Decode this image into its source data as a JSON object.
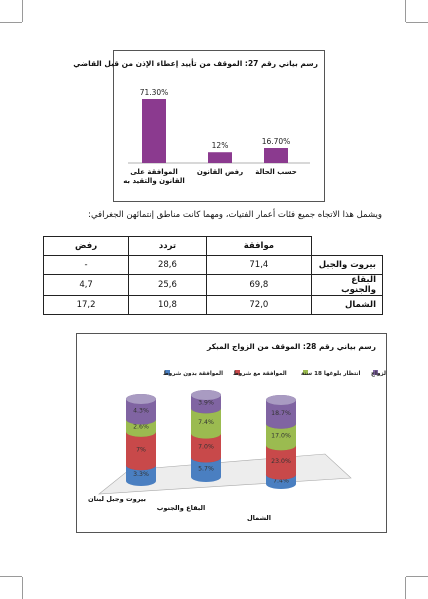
{
  "chart1": {
    "title": "رسم بياني رقم 27: الموقف من تأييد إعطاء الإذن من قبل القاضي",
    "chart_data": {
      "type": "bar",
      "categories": [
        "الموافقة على القانون والتقيد به",
        "رفض القانون",
        "حسب الحالة"
      ],
      "values": [
        71.3,
        12,
        16.7
      ],
      "value_labels": [
        "71.30%",
        "12%",
        "16.70%"
      ],
      "colors": [
        "#8b3a8f"
      ]
    }
  },
  "paragraph": "ويشمل هذا الاتجاه جميع فئات أعمار الفتيات، ومهما كانت مناطق إنتمائهن الجغرافي:",
  "table": {
    "headers": [
      "موافقة",
      "تردد",
      "رفض"
    ],
    "rows": [
      {
        "region": "بيروت والجبل",
        "values": [
          "71,4",
          "28,6",
          "-"
        ]
      },
      {
        "region": "البقاع والجنوب",
        "values": [
          "69,8",
          "25,6",
          "4,7"
        ]
      },
      {
        "region": "الشمال",
        "values": [
          "72,0",
          "10,8",
          "17,2"
        ]
      }
    ]
  },
  "chart2": {
    "title": "رسم بياني رقم 28: الموقف من الزواج المبكر",
    "chart_data": {
      "type": "bar",
      "stacked": true,
      "categories": [
        "بيروت وجبل لبنان",
        "البقاع والجنوب",
        "الشمال"
      ],
      "legend_position": "top",
      "series": [
        {
          "name": "الموافقة بدون شروط",
          "color": "#4a7fc1",
          "values": [
            3.3,
            5.7,
            7.4
          ],
          "labels": [
            "3.3%",
            "5.7%",
            "7.4%"
          ]
        },
        {
          "name": "الموافقة مع شروط",
          "color": "#c8494a",
          "values": [
            7,
            7,
            23
          ],
          "labels": [
            "7%",
            "7.0%",
            "23.0%"
          ]
        },
        {
          "name": "انتظار بلوغها 18 سنة",
          "color": "#9bbb50",
          "values": [
            2.6,
            7.4,
            17
          ],
          "labels": [
            "2.6%",
            "7.4%",
            "17.0%"
          ]
        },
        {
          "name": "رفض الزواج",
          "color": "#8064a2",
          "values": [
            4.3,
            3.9,
            18.7
          ],
          "labels": [
            "4.3%",
            "3.9%",
            "18.7%"
          ]
        }
      ]
    }
  }
}
